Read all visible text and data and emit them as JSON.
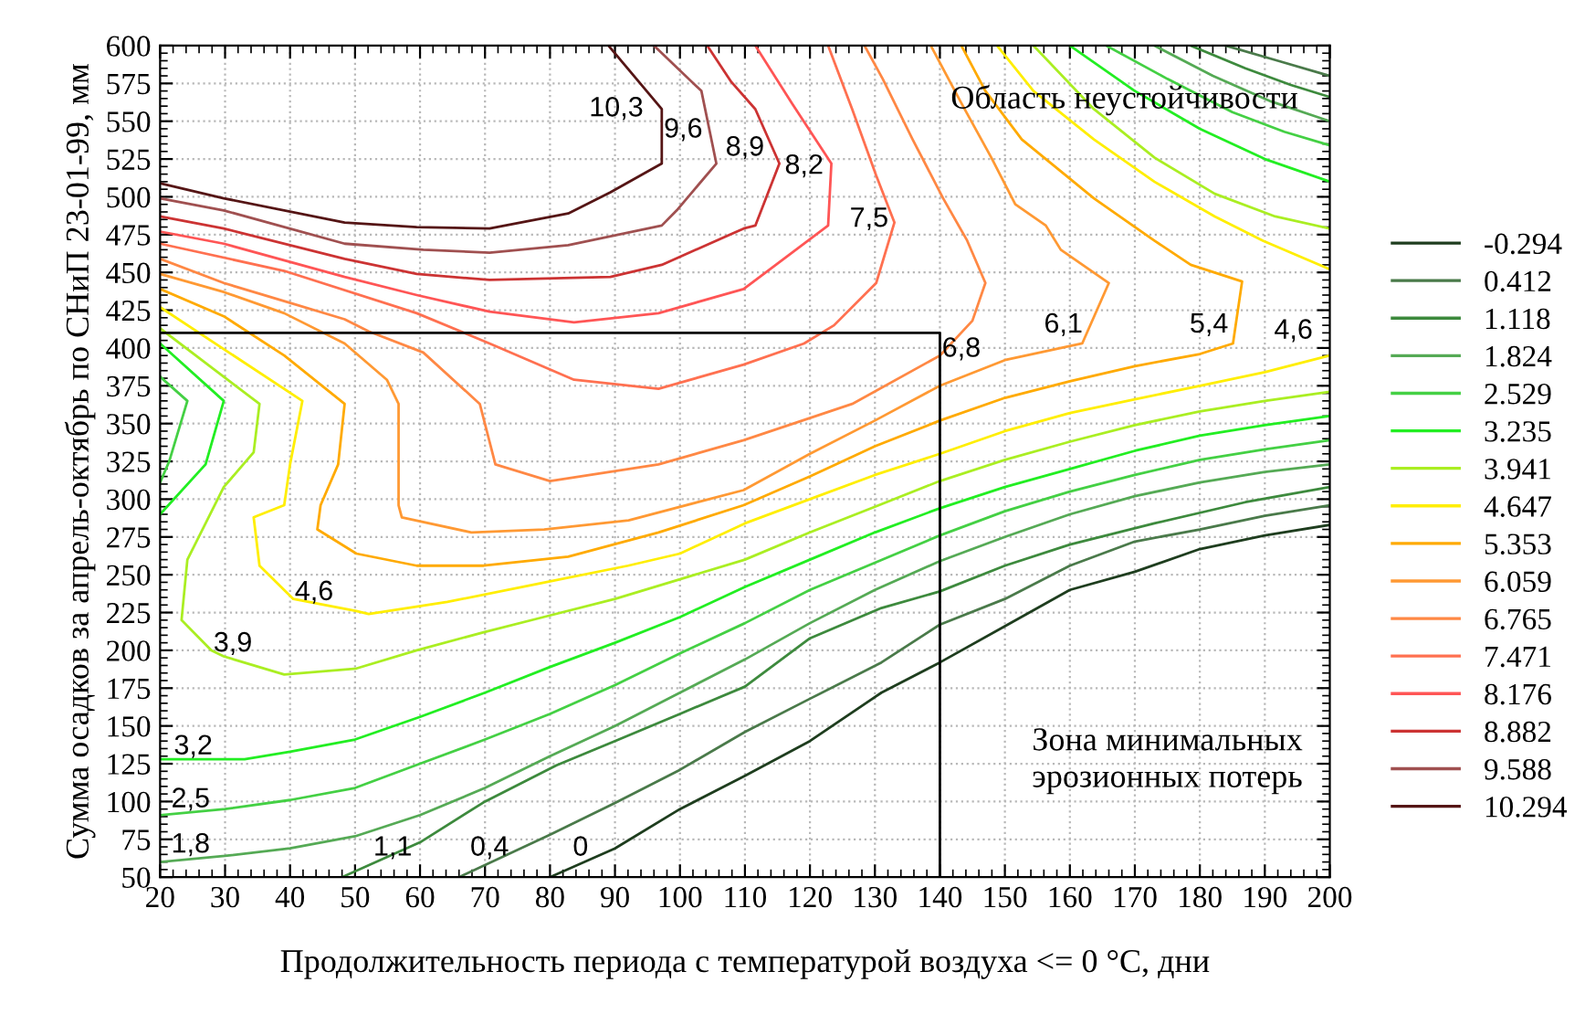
{
  "chart_data": {
    "type": "line",
    "xlabel": "Продолжительность периода с температурой воздуха <= 0 °C, дни",
    "ylabel": "Сумма осадков за апрель-октябрь по СНиП 23-01-99, мм",
    "xlim": [
      20,
      200
    ],
    "ylim": [
      50,
      600
    ],
    "xticks": [
      20,
      30,
      40,
      50,
      60,
      70,
      80,
      90,
      100,
      110,
      120,
      130,
      140,
      150,
      160,
      170,
      180,
      190,
      200
    ],
    "yticks": [
      50,
      75,
      100,
      125,
      150,
      175,
      200,
      225,
      250,
      275,
      300,
      325,
      350,
      375,
      400,
      425,
      450,
      475,
      500,
      525,
      550,
      575,
      600
    ],
    "grid": true,
    "legend": "right",
    "marker": "none",
    "line_style": "solid",
    "series": [
      {
        "name": "-0.294",
        "color": "#1e3d1e",
        "x": [
          80,
          90,
          100,
          110,
          120,
          131,
          140,
          150,
          160,
          170,
          180,
          190,
          200
        ],
        "values": [
          50,
          69,
          95,
          117,
          140,
          172,
          192,
          216,
          240,
          252,
          267,
          276,
          283
        ]
      },
      {
        "name": "0.412",
        "color": "#4a7a4a",
        "x": [
          66,
          80,
          90,
          100,
          110,
          120,
          131,
          140,
          150,
          160,
          170,
          180,
          190,
          200,
          null,
          184,
          192,
          200
        ],
        "values": [
          50,
          78,
          99,
          121,
          146,
          168,
          192,
          217,
          234,
          256,
          272,
          280,
          289,
          296,
          null,
          600,
          590,
          580
        ]
      },
      {
        "name": "1.118",
        "color": "#3d8a3d",
        "x": [
          48,
          60,
          70,
          81,
          90,
          100,
          110,
          120,
          131,
          140,
          150,
          160,
          173,
          187,
          200,
          null,
          178.6,
          187,
          194,
          200
        ],
        "values": [
          50,
          73,
          100,
          124,
          140,
          158,
          176,
          208,
          228,
          239,
          256,
          270,
          284,
          298,
          308,
          null,
          600,
          585,
          574,
          566
        ]
      },
      {
        "name": "1.824",
        "color": "#55aa55",
        "x": [
          20,
          30,
          40,
          50,
          60,
          70,
          80,
          90,
          100,
          110,
          120,
          130,
          140,
          150,
          160,
          170,
          180,
          190,
          200,
          null,
          173,
          182,
          191,
          200
        ],
        "values": [
          60,
          64,
          69,
          77,
          91,
          109,
          130,
          150,
          172,
          194,
          218,
          240,
          259,
          275,
          290,
          302,
          311,
          318,
          323,
          null,
          600,
          580,
          563,
          550
        ]
      },
      {
        "name": "2.529",
        "color": "#44d044",
        "x": [
          20,
          30,
          40,
          50,
          60,
          70,
          80,
          90,
          100,
          110,
          120,
          130,
          140,
          150,
          160,
          170,
          180,
          190,
          200,
          null,
          20,
          24.2,
          21.4,
          20,
          null,
          165.6,
          175,
          185,
          193,
          200
        ],
        "values": [
          91,
          95,
          101,
          109,
          125,
          141,
          158,
          177,
          198,
          218,
          240,
          258,
          276,
          292,
          305,
          316,
          326,
          333,
          339,
          null,
          381,
          365,
          325,
          311,
          null,
          600,
          578,
          556,
          543,
          534
        ]
      },
      {
        "name": "3.235",
        "color": "#22ee22",
        "x": [
          20,
          33,
          40,
          50,
          60,
          70,
          80,
          90,
          100,
          110,
          120,
          130,
          140,
          150,
          160,
          170,
          180,
          190,
          200,
          null,
          20,
          29.8,
          27,
          20,
          null,
          160,
          170,
          180,
          190,
          200
        ],
        "values": [
          128,
          128,
          133,
          141,
          156,
          172,
          189,
          205,
          222,
          242,
          260,
          278,
          294,
          308,
          320,
          332,
          342,
          349,
          355,
          null,
          403,
          365,
          323,
          290,
          null,
          600,
          570,
          545,
          525,
          510
        ]
      },
      {
        "name": "3.941",
        "color": "#aaee22",
        "x": [
          20,
          35.3,
          34.4,
          29.8,
          24.2,
          23.3,
          27.9,
          29.8,
          39.1,
          50.2,
          59.5,
          69.8,
          79,
          90,
          100,
          110,
          120,
          130,
          140,
          150,
          160,
          170,
          180,
          190,
          200,
          null,
          154.4,
          163.7,
          173,
          182.3,
          191.6,
          200
        ],
        "values": [
          413,
          363,
          331,
          308,
          260,
          220,
          200,
          196,
          184,
          188,
          200,
          212,
          222,
          234,
          247,
          260,
          278,
          295,
          312,
          326,
          338,
          349,
          358,
          365,
          371,
          null,
          600,
          558,
          526,
          502,
          487,
          479
        ]
      },
      {
        "name": "4.647",
        "color": "#ffee00",
        "x": [
          20,
          41.9,
          40,
          39.1,
          34.4,
          35.3,
          40.5,
          50.2,
          52.1,
          64.2,
          78.1,
          92,
          100,
          110,
          120,
          130,
          140,
          150,
          160,
          170,
          180,
          190,
          200,
          null,
          148.8,
          154.4,
          163.7,
          173,
          182.3,
          189.7,
          200
        ],
        "values": [
          427,
          365,
          323,
          296,
          288,
          256,
          234,
          226,
          224,
          232,
          244,
          256,
          264,
          284,
          300,
          316,
          330,
          345,
          357,
          366,
          375,
          384,
          395,
          null,
          600,
          570,
          538,
          510,
          487,
          471,
          452
        ]
      },
      {
        "name": "5.353",
        "color": "#ffaa00",
        "x": [
          20,
          29.8,
          39.1,
          48.4,
          47.4,
          44.7,
          44.2,
          50.2,
          59.5,
          69.8,
          82.8,
          96.7,
          109.8,
          120,
          130,
          140,
          150,
          160,
          170,
          180,
          185.1,
          186.5,
          178.6,
          173,
          163.7,
          152.6,
          147,
          143.3
        ],
        "values": [
          439,
          421,
          395,
          363,
          323,
          296,
          280,
          264,
          256,
          256,
          262,
          278,
          296,
          315,
          335,
          352,
          367,
          378,
          388,
          396,
          403,
          444,
          455,
          471,
          499,
          538,
          570,
          600
        ]
      },
      {
        "name": "6.059",
        "color": "#ff9933",
        "x": [
          20,
          29.8,
          39.1,
          48.4,
          54.9,
          56.7,
          56.7,
          57.2,
          67.9,
          79.1,
          92.1,
          109.8,
          120,
          130,
          140,
          150,
          161.9,
          166,
          158.6,
          156.3,
          151.6,
          147.9,
          143.3,
          138.6
        ],
        "values": [
          449,
          437,
          423,
          403,
          379,
          363,
          296,
          288,
          278,
          280,
          286,
          306,
          330,
          352,
          375,
          392,
          403,
          443,
          465,
          481,
          495,
          526,
          562,
          600
        ]
      },
      {
        "name": "6.765",
        "color": "#ff8844",
        "x": [
          20,
          29.8,
          39.1,
          48.4,
          52.1,
          60.5,
          69.2,
          71.6,
          80,
          96.7,
          109.8,
          126.5,
          140,
          145,
          147,
          144.2,
          140.5,
          135.8,
          131.2,
          128.4
        ],
        "values": [
          459,
          443,
          431,
          419,
          411,
          397,
          363,
          323,
          312,
          323,
          339,
          363,
          395,
          418,
          443,
          471,
          499,
          538,
          578,
          600
        ]
      },
      {
        "name": "7.471",
        "color": "#ff7050",
        "x": [
          20,
          39.1,
          59.5,
          70.7,
          83.7,
          96.7,
          109.8,
          119.1,
          123.7,
          130.2,
          133,
          130.2,
          126.5,
          122.8
        ],
        "values": [
          469,
          451,
          423,
          403,
          379,
          373,
          389,
          403,
          415,
          443,
          483,
          514,
          558,
          600
        ]
      },
      {
        "name": "8.176",
        "color": "#ff5555",
        "x": [
          20,
          29.8,
          48.4,
          59.5,
          70.7,
          83.7,
          96.7,
          109.8,
          113.5,
          122.8,
          123.3,
          117.2,
          111.6
        ],
        "values": [
          477,
          469,
          447,
          435,
          424,
          417,
          423,
          439,
          451,
          481,
          522,
          562,
          600
        ]
      },
      {
        "name": "8.882",
        "color": "#cc3333",
        "x": [
          20,
          29.8,
          48.4,
          59.5,
          70.7,
          89.3,
          97.2,
          109.8,
          111.6,
          115.3,
          111.6,
          107.9,
          104.2
        ],
        "values": [
          487,
          479,
          459,
          449,
          445,
          447,
          455,
          479,
          481,
          522,
          558,
          576,
          600
        ]
      },
      {
        "name": "9.588",
        "color": "#a05050",
        "x": [
          20,
          29.8,
          48.4,
          60.5,
          70.7,
          82.8,
          97.2,
          99.5,
          105.6,
          103.3,
          96
        ],
        "values": [
          499,
          491,
          469,
          465,
          463,
          468,
          481,
          491,
          522,
          570,
          600
        ]
      },
      {
        "name": "10.294",
        "color": "#551515",
        "x": [
          20,
          29.8,
          48.4,
          59.5,
          70.7,
          82.8,
          89.3,
          97.2,
          97.2,
          89
        ],
        "values": [
          509,
          499,
          483,
          480,
          479,
          489,
          503,
          522,
          558,
          600
        ]
      },
      {
        "color": "#000000",
        "x": [
          20,
          140,
          140
        ],
        "values": [
          410,
          410,
          50
        ]
      }
    ],
    "annotations": [
      "10,3",
      "9,6",
      "8,9",
      "8,2",
      "7,5",
      "6,8",
      "6,1",
      "5,4",
      "4,6",
      "4,6",
      "3,9",
      "3,2",
      "2,5",
      "1,8",
      "1,1",
      "0,4",
      "0",
      "Область неустойчивости",
      "Зона минимальных\nэрозионных потерь"
    ]
  }
}
